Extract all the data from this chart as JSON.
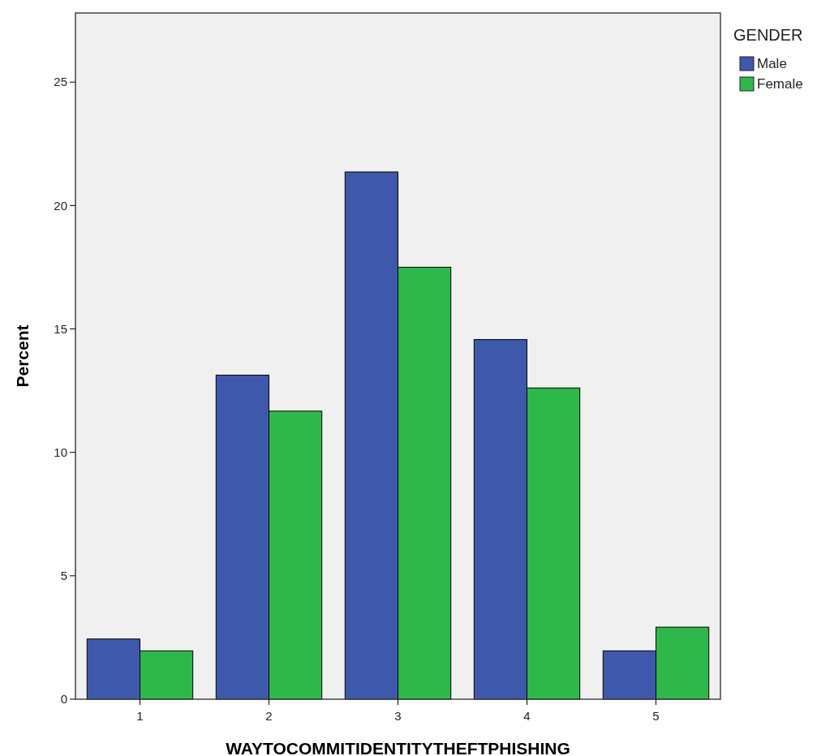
{
  "chart_data": {
    "type": "bar",
    "xlabel": "WAYTOCOMMITIDENTITYTHEFTPHISHING",
    "ylabel": "Percent",
    "legend_title": "GENDER",
    "legend": "right",
    "categories": [
      "1",
      "2",
      "3",
      "4",
      "5"
    ],
    "series": [
      {
        "name": "Male",
        "color": "#3e58ac",
        "values": [
          2.44,
          13.13,
          21.36,
          14.57,
          1.96
        ]
      },
      {
        "name": "Female",
        "color": "#2fb84a",
        "values": [
          1.96,
          11.67,
          17.5,
          12.61,
          2.92
        ]
      }
    ],
    "ylim": [
      0,
      27.8
    ],
    "yticks": [
      0,
      5,
      10,
      15,
      20,
      25
    ],
    "grid": false
  }
}
